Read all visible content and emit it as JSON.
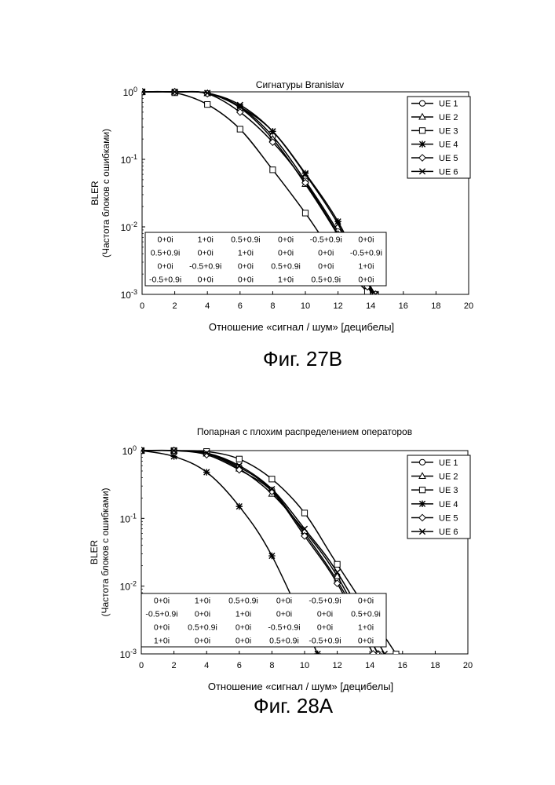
{
  "charts": [
    {
      "caption": "Фиг. 27B",
      "chart_data": {
        "type": "line",
        "title": "Сигнатуры  Branislav",
        "xlabel": "Отношение «сигнал / шум» [децибелы]",
        "ylabel_line1": "BLER",
        "ylabel_line2": "(Частота блоков с ошибками)",
        "xlim": [
          0,
          20
        ],
        "ylim_log10": [
          -3,
          0
        ],
        "y_scale": "log",
        "xticks": [
          "0",
          "2",
          "4",
          "6",
          "8",
          "10",
          "12",
          "14",
          "16",
          "18",
          "20"
        ],
        "yticks": [
          {
            "base": "10",
            "exp": "0"
          },
          {
            "base": "10",
            "exp": "-1"
          },
          {
            "base": "10",
            "exp": "-2"
          },
          {
            "base": "10",
            "exp": "-3"
          }
        ],
        "legend_position": "top-right",
        "series": [
          {
            "name": "UE 1",
            "marker": "circle",
            "x": [
              0,
              2,
              4,
              6,
              8,
              10,
              12,
              13.8,
              14.3
            ],
            "y": [
              1,
              1,
              0.95,
              0.6,
              0.22,
              0.048,
              0.0085,
              0.0014,
              0.001
            ]
          },
          {
            "name": "UE 2",
            "marker": "triangle",
            "x": [
              0,
              2,
              4,
              6,
              8,
              10,
              12,
              13.8,
              14.3
            ],
            "y": [
              1,
              1,
              0.95,
              0.58,
              0.2,
              0.043,
              0.0075,
              0.0013,
              0.001
            ]
          },
          {
            "name": "UE 3",
            "marker": "square",
            "x": [
              0,
              2,
              4,
              6,
              8,
              10,
              12,
              13.8,
              14.3
            ],
            "y": [
              1,
              0.97,
              0.65,
              0.28,
              0.07,
              0.016,
              0.0032,
              0.0011,
              0.001
            ]
          },
          {
            "name": "UE 4",
            "marker": "star",
            "x": [
              0,
              2,
              4,
              6,
              8,
              10,
              12,
              13.8,
              14.3
            ],
            "y": [
              1,
              1,
              0.96,
              0.6,
              0.26,
              0.062,
              0.012,
              0.0016,
              0.001
            ]
          },
          {
            "name": "UE 5",
            "marker": "diamond",
            "x": [
              0,
              2,
              4,
              6,
              8,
              10,
              12,
              13.8,
              14.3
            ],
            "y": [
              1,
              1,
              0.94,
              0.5,
              0.18,
              0.045,
              0.0078,
              0.0013,
              0.001
            ]
          },
          {
            "name": "UE 6",
            "marker": "x",
            "x": [
              0,
              2,
              4,
              6,
              8,
              10,
              12,
              13.8,
              14.3
            ],
            "y": [
              1,
              1,
              0.96,
              0.64,
              0.26,
              0.06,
              0.011,
              0.0015,
              0.001
            ]
          }
        ],
        "table": [
          [
            "0+0i",
            "1+0i",
            "0.5+0.9i",
            "0+0i",
            "-0.5+0.9i",
            "0+0i"
          ],
          [
            "0.5+0.9i",
            "0+0i",
            "1+0i",
            "0+0i",
            "0+0i",
            "-0.5+0.9i"
          ],
          [
            "0+0i",
            "-0.5+0.9i",
            "0+0i",
            "0.5+0.9i",
            "0+0i",
            "1+0i"
          ],
          [
            "-0.5+0.9i",
            "0+0i",
            "0+0i",
            "1+0i",
            "0.5+0.9i",
            "0+0i"
          ]
        ]
      }
    },
    {
      "caption": "Фиг. 28A",
      "chart_data": {
        "type": "line",
        "title": "Попарная с плохим распределением операторов",
        "xlabel": "Отношение «сигнал / шум» [децибелы]",
        "ylabel_line1": "BLER",
        "ylabel_line2": "(Частота блоков с ошибками)",
        "xlim": [
          0,
          20
        ],
        "ylim_log10": [
          -3,
          0
        ],
        "y_scale": "log",
        "xticks": [
          "0",
          "2",
          "4",
          "6",
          "8",
          "10",
          "12",
          "14",
          "16",
          "18",
          "20"
        ],
        "yticks": [
          {
            "base": "10",
            "exp": "0"
          },
          {
            "base": "10",
            "exp": "-1"
          },
          {
            "base": "10",
            "exp": "-2"
          },
          {
            "base": "10",
            "exp": "-3"
          }
        ],
        "legend_position": "top-right",
        "series": [
          {
            "name": "UE 1",
            "marker": "circle",
            "x": [
              0,
              2,
              4,
              6,
              8,
              10,
              12,
              14.5
            ],
            "y": [
              1,
              1,
              0.92,
              0.57,
              0.26,
              0.06,
              0.012,
              0.001
            ]
          },
          {
            "name": "UE 2",
            "marker": "triangle",
            "x": [
              0,
              2,
              4,
              6,
              8,
              10,
              12,
              14.5
            ],
            "y": [
              1,
              1,
              0.9,
              0.54,
              0.23,
              0.065,
              0.014,
              0.001
            ]
          },
          {
            "name": "UE 3",
            "marker": "square",
            "x": [
              0,
              2,
              4,
              6,
              8,
              10,
              12,
              15.6
            ],
            "y": [
              1,
              1,
              0.97,
              0.75,
              0.38,
              0.12,
              0.021,
              0.001
            ]
          },
          {
            "name": "UE 4",
            "marker": "star",
            "x": [
              0,
              2,
              4,
              6,
              8,
              10.8
            ],
            "y": [
              1,
              0.82,
              0.48,
              0.15,
              0.028,
              0.001
            ]
          },
          {
            "name": "UE 5",
            "marker": "diamond",
            "x": [
              0,
              2,
              4,
              6,
              8,
              10,
              12,
              14.2
            ],
            "y": [
              1,
              1,
              0.87,
              0.52,
              0.25,
              0.055,
              0.011,
              0.001
            ]
          },
          {
            "name": "UE 6",
            "marker": "x",
            "x": [
              0,
              2,
              4,
              6,
              8,
              10,
              12,
              14.9
            ],
            "y": [
              1,
              1,
              0.92,
              0.6,
              0.27,
              0.07,
              0.016,
              0.001
            ]
          }
        ],
        "table": [
          [
            "0+0i",
            "1+0i",
            "0.5+0.9i",
            "0+0i",
            "-0.5+0.9i",
            "0+0i"
          ],
          [
            "-0.5+0.9i",
            "0+0i",
            "1+0i",
            "0+0i",
            "0+0i",
            "0.5+0.9i"
          ],
          [
            "0+0i",
            "0.5+0.9i",
            "0+0i",
            "-0.5+0.9i",
            "0+0i",
            "1+0i"
          ],
          [
            "1+0i",
            "0+0i",
            "0+0i",
            "0.5+0.9i",
            "-0.5+0.9i",
            "0+0i"
          ]
        ]
      }
    }
  ]
}
